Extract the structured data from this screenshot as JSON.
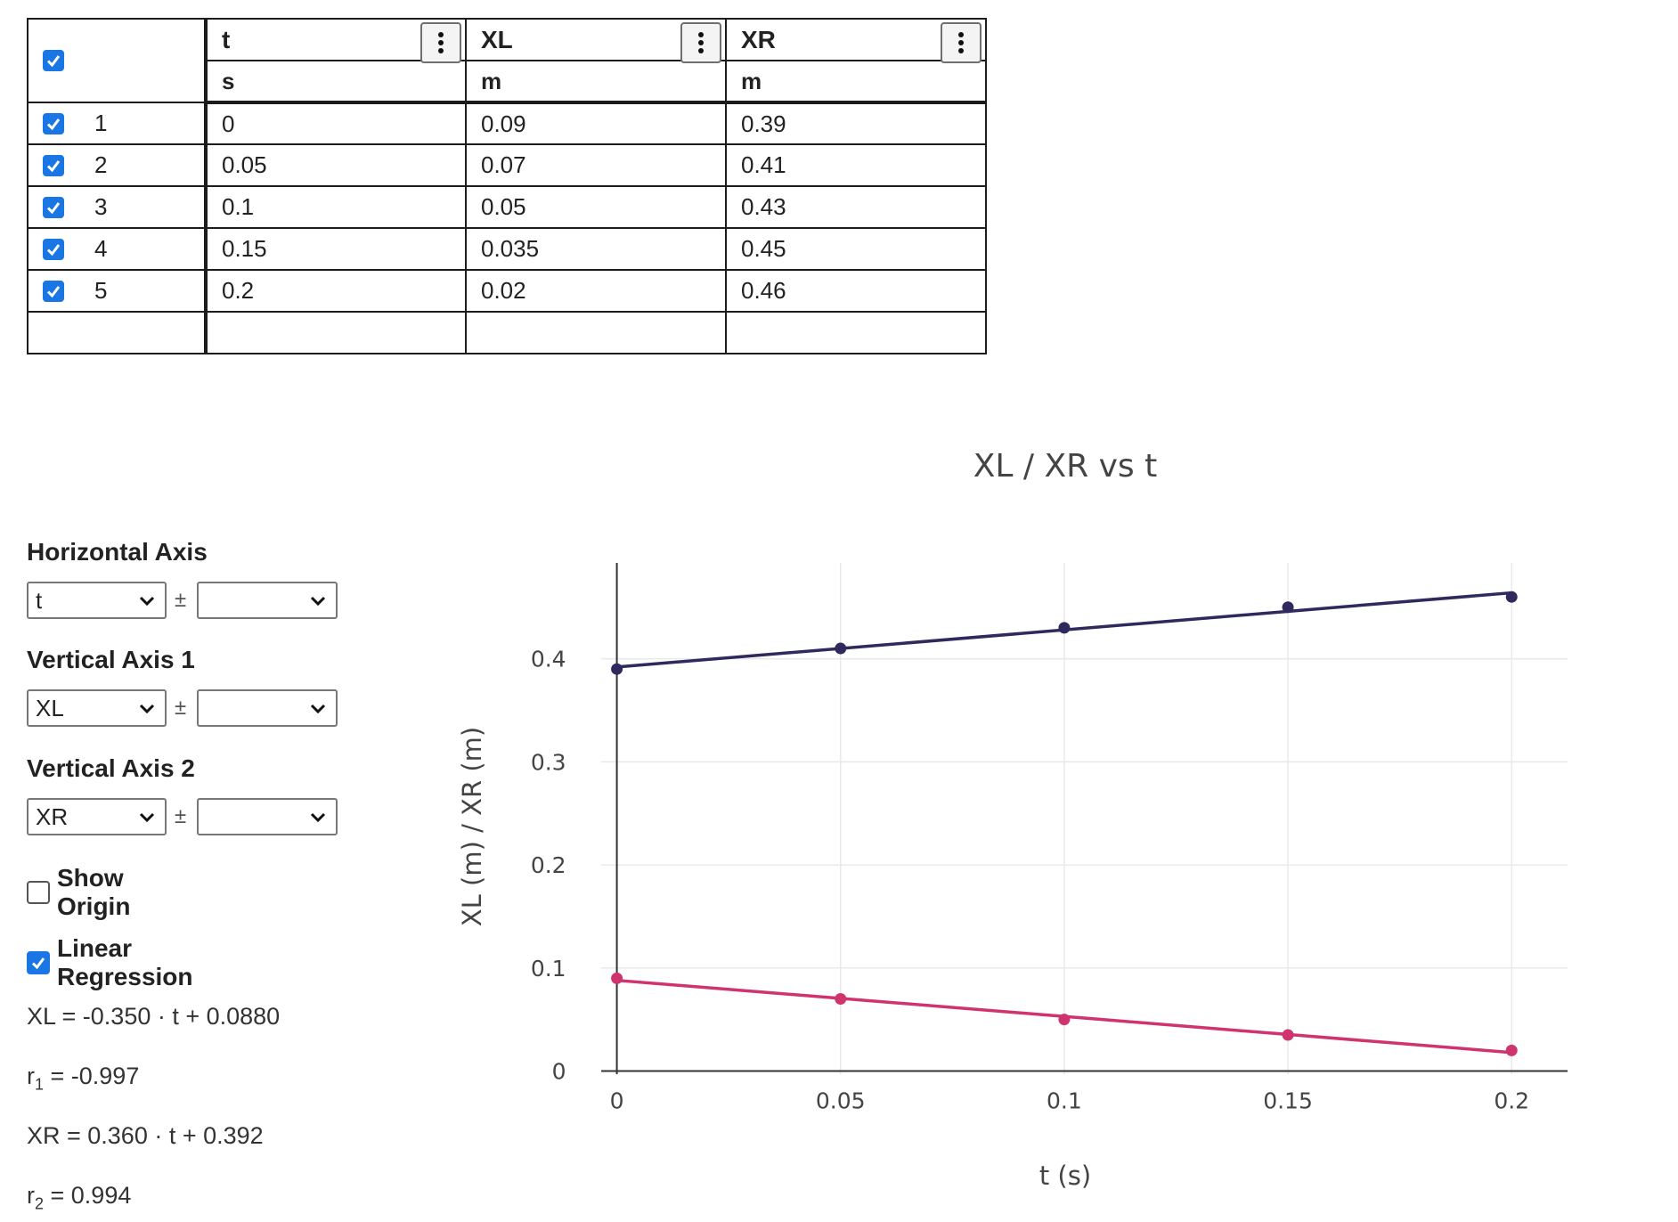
{
  "table": {
    "columns": [
      {
        "name": "t",
        "unit": "s"
      },
      {
        "name": "XL",
        "unit": "m"
      },
      {
        "name": "XR",
        "unit": "m"
      }
    ],
    "rows": [
      {
        "num": "1",
        "values": [
          "0",
          "0.09",
          "0.39"
        ]
      },
      {
        "num": "2",
        "values": [
          "0.05",
          "0.07",
          "0.41"
        ]
      },
      {
        "num": "3",
        "values": [
          "0.1",
          "0.05",
          "0.43"
        ]
      },
      {
        "num": "4",
        "values": [
          "0.15",
          "0.035",
          "0.45"
        ]
      },
      {
        "num": "5",
        "values": [
          "0.2",
          "0.02",
          "0.46"
        ]
      }
    ]
  },
  "controls": {
    "horizontal_axis_label": "Horizontal Axis",
    "horizontal_axis_value": "t",
    "vertical_axis_1_label": "Vertical Axis 1",
    "vertical_axis_1_value": "XL",
    "vertical_axis_2_label": "Vertical Axis 2",
    "vertical_axis_2_value": "XR",
    "plus_minus": "±",
    "show_origin_label": "Show Origin",
    "show_origin_checked": false,
    "linear_regression_label": "Linear Regression",
    "linear_regression_checked": true
  },
  "regression": {
    "eq1": "XL = -0.350 · t + 0.0880",
    "r1_prefix": "r",
    "r1_sub": "1",
    "r1_value": " = -0.997",
    "eq2": "XR = 0.360 · t + 0.392",
    "r2_prefix": "r",
    "r2_sub": "2",
    "r2_value": " = 0.994"
  },
  "colors": {
    "checkbox": "#1976e4",
    "series_xl": "#d0346f",
    "series_xr": "#2e2a5e"
  },
  "chart_data": {
    "type": "scatter",
    "title": "XL / XR vs t",
    "xlabel": "t (s)",
    "ylabel": "XL (m) / XR (m)",
    "x": [
      0,
      0.05,
      0.1,
      0.15,
      0.2
    ],
    "xlim": [
      -0.0035,
      0.2125
    ],
    "ylim": [
      -0.003,
      0.493
    ],
    "xticks": [
      0,
      0.05,
      0.1,
      0.15,
      0.2
    ],
    "xtick_labels": [
      "0",
      "0.05",
      "0.1",
      "0.15",
      "0.2"
    ],
    "yticks": [
      0,
      0.1,
      0.2,
      0.3,
      0.4
    ],
    "ytick_labels": [
      "0",
      "0.1",
      "0.2",
      "0.3",
      "0.4"
    ],
    "grid": true,
    "series": [
      {
        "values": [
          0.09,
          0.07,
          0.05,
          0.035,
          0.02
        ],
        "color": "#d0346f",
        "fit": {
          "slope": -0.35,
          "intercept": 0.088
        }
      },
      {
        "values": [
          0.39,
          0.41,
          0.43,
          0.45,
          0.46
        ],
        "color": "#2e2a5e",
        "fit": {
          "slope": 0.36,
          "intercept": 0.392
        }
      }
    ]
  }
}
